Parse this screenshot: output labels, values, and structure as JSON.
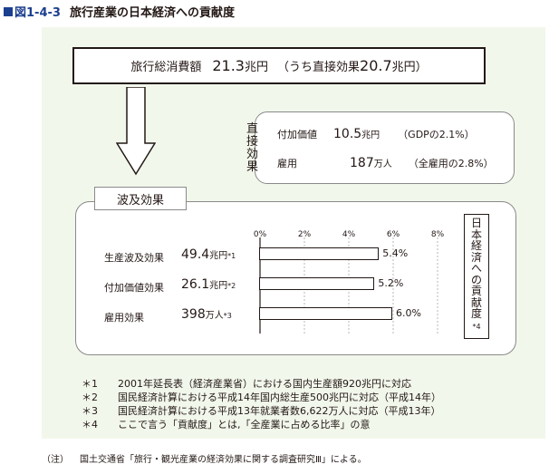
{
  "title": {
    "figure_no": "図1-4-3",
    "text": "旅行産業の日本経済への貢献度"
  },
  "top_box": {
    "label": "旅行総消費額",
    "value": "21.3",
    "unit": "兆円",
    "note_open": "（うち直接効果",
    "note_value": "20.7",
    "note_close": "兆円）"
  },
  "direct": {
    "label": [
      "直",
      "接",
      "効",
      "果"
    ],
    "rows": [
      {
        "label": "付加価値",
        "value": "10.5",
        "unit": "兆円",
        "note": "（GDPの2.1%）"
      },
      {
        "label": "雇用",
        "value": "187",
        "unit": "万人",
        "note": "（全雇用の2.8%）"
      }
    ]
  },
  "ripple": {
    "tag": "波及効果",
    "rows": [
      {
        "label": "生産波及効果",
        "value": "49.4",
        "unit": "兆円",
        "mark": "*1"
      },
      {
        "label": "付加価値効果",
        "value": "26.1",
        "unit": "兆円",
        "mark": "*2"
      },
      {
        "label": "雇用効果",
        "value": "398",
        "unit": "万人",
        "mark": "*3"
      }
    ]
  },
  "side_label": {
    "chars": [
      "日",
      "本",
      "経",
      "済",
      "へ",
      "の",
      "貢",
      "献",
      "度"
    ],
    "mark": "*4"
  },
  "chart_data": {
    "type": "bar",
    "orientation": "horizontal",
    "categories": [
      "生産波及効果",
      "付加価値効果",
      "雇用効果"
    ],
    "values": [
      5.4,
      5.2,
      6.0
    ],
    "value_labels": [
      "5.4%",
      "5.2%",
      "6.0%"
    ],
    "ticks": [
      "0%",
      "2%",
      "4%",
      "6%",
      "8%"
    ],
    "xlim": [
      0,
      8
    ],
    "grid": true,
    "bar_color": "#ffffff"
  },
  "notes": [
    {
      "key": "＊1",
      "text": "2001年延長表（経済産業省）における国内生産額920兆円に対応"
    },
    {
      "key": "＊2",
      "text": "国民経済計算における平成14年国内総生産500兆円に対応（平成14年）"
    },
    {
      "key": "＊3",
      "text": "国民経済計算における平成13年就業者数6,622万人に対応（平成13年）"
    },
    {
      "key": "＊4",
      "text": "ここで言う「貢献度」とは,「全産業に占める比率」の意"
    }
  ],
  "footer": {
    "key": "（注）",
    "text": "国土交通省「旅行・観光産業の経済効果に関する調査研究Ⅲ」による。"
  },
  "colors": {
    "panel": "#f2f7ec",
    "accent": "#1b3f8f"
  }
}
